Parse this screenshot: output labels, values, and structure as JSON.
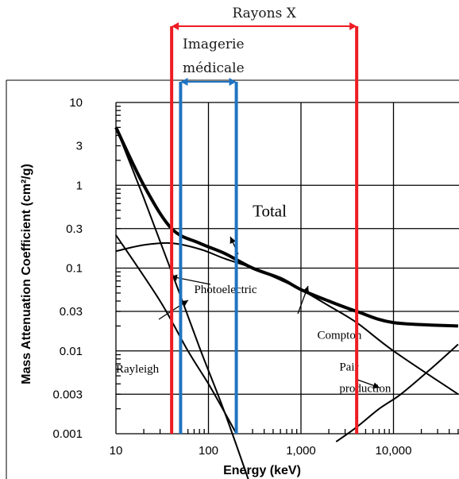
{
  "chart_data": {
    "type": "line",
    "title": "",
    "xlabel": "Energy (keV)",
    "ylabel": "Mass Attenuation Coefficient (cm²/g)",
    "x_scale": "log",
    "y_scale": "log",
    "xlim": [
      10,
      50000
    ],
    "ylim": [
      0.001,
      10
    ],
    "grid": true,
    "x_ticks": [
      {
        "value": 10,
        "label": "10"
      },
      {
        "value": 100,
        "label": "100"
      },
      {
        "value": 1000,
        "label": "1,000"
      },
      {
        "value": 10000,
        "label": "10,000"
      }
    ],
    "y_ticks": [
      {
        "value": 10,
        "label": "10"
      },
      {
        "value": 3,
        "label": "3"
      },
      {
        "value": 1,
        "label": "1"
      },
      {
        "value": 0.3,
        "label": "0.3"
      },
      {
        "value": 0.1,
        "label": "0.1"
      },
      {
        "value": 0.03,
        "label": "0.03"
      },
      {
        "value": 0.01,
        "label": "0.01"
      },
      {
        "value": 0.003,
        "label": "0.003"
      },
      {
        "value": 0.001,
        "label": "0.001"
      }
    ],
    "series": [
      {
        "name": "Total",
        "x": [
          10,
          20,
          40,
          80,
          150,
          300,
          600,
          1000,
          2000,
          4000,
          10000,
          50000
        ],
        "y": [
          5,
          1.0,
          0.3,
          0.2,
          0.15,
          0.1,
          0.075,
          0.055,
          0.04,
          0.03,
          0.022,
          0.02
        ]
      },
      {
        "name": "Photoelectric",
        "x": [
          10,
          20,
          40,
          80,
          150,
          300
        ],
        "y": [
          5,
          0.7,
          0.09,
          0.011,
          0.0018,
          0.0002
        ]
      },
      {
        "name": "Rayleigh",
        "x": [
          10,
          30,
          60,
          100,
          150,
          200
        ],
        "y": [
          0.25,
          0.04,
          0.01,
          0.004,
          0.0018,
          0.001
        ]
      },
      {
        "name": "Compton",
        "x": [
          10,
          20,
          40,
          80,
          150,
          300,
          600,
          1000,
          2000,
          4000,
          10000,
          50000
        ],
        "y": [
          0.16,
          0.19,
          0.2,
          0.17,
          0.13,
          0.1,
          0.072,
          0.055,
          0.035,
          0.022,
          0.01,
          0.003
        ]
      },
      {
        "name": "Pair production",
        "x": [
          2400,
          4000,
          7000,
          12000,
          25000,
          50000
        ],
        "y": [
          0.0008,
          0.0012,
          0.002,
          0.003,
          0.006,
          0.012
        ]
      }
    ],
    "annotations": [
      {
        "text": "Total",
        "x": 300,
        "y": 0.42
      },
      {
        "text": "Photoelectric",
        "x": 70,
        "y": 0.05
      },
      {
        "text": "Compton",
        "x": 1500,
        "y": 0.014
      },
      {
        "text": "Rayleigh",
        "x": 10,
        "y": 0.0055
      },
      {
        "text": "Pair",
        "x": 2600,
        "y": 0.0058
      },
      {
        "text": "production",
        "x": 2600,
        "y": 0.0032
      }
    ],
    "bands": [
      {
        "label": "Rayons X",
        "x_range": [
          40,
          4000
        ],
        "color": "#ee1c24"
      },
      {
        "label_lines": [
          "Imagerie",
          "médicale"
        ],
        "x_range": [
          50,
          200
        ],
        "color": "#1f74c2"
      }
    ]
  }
}
